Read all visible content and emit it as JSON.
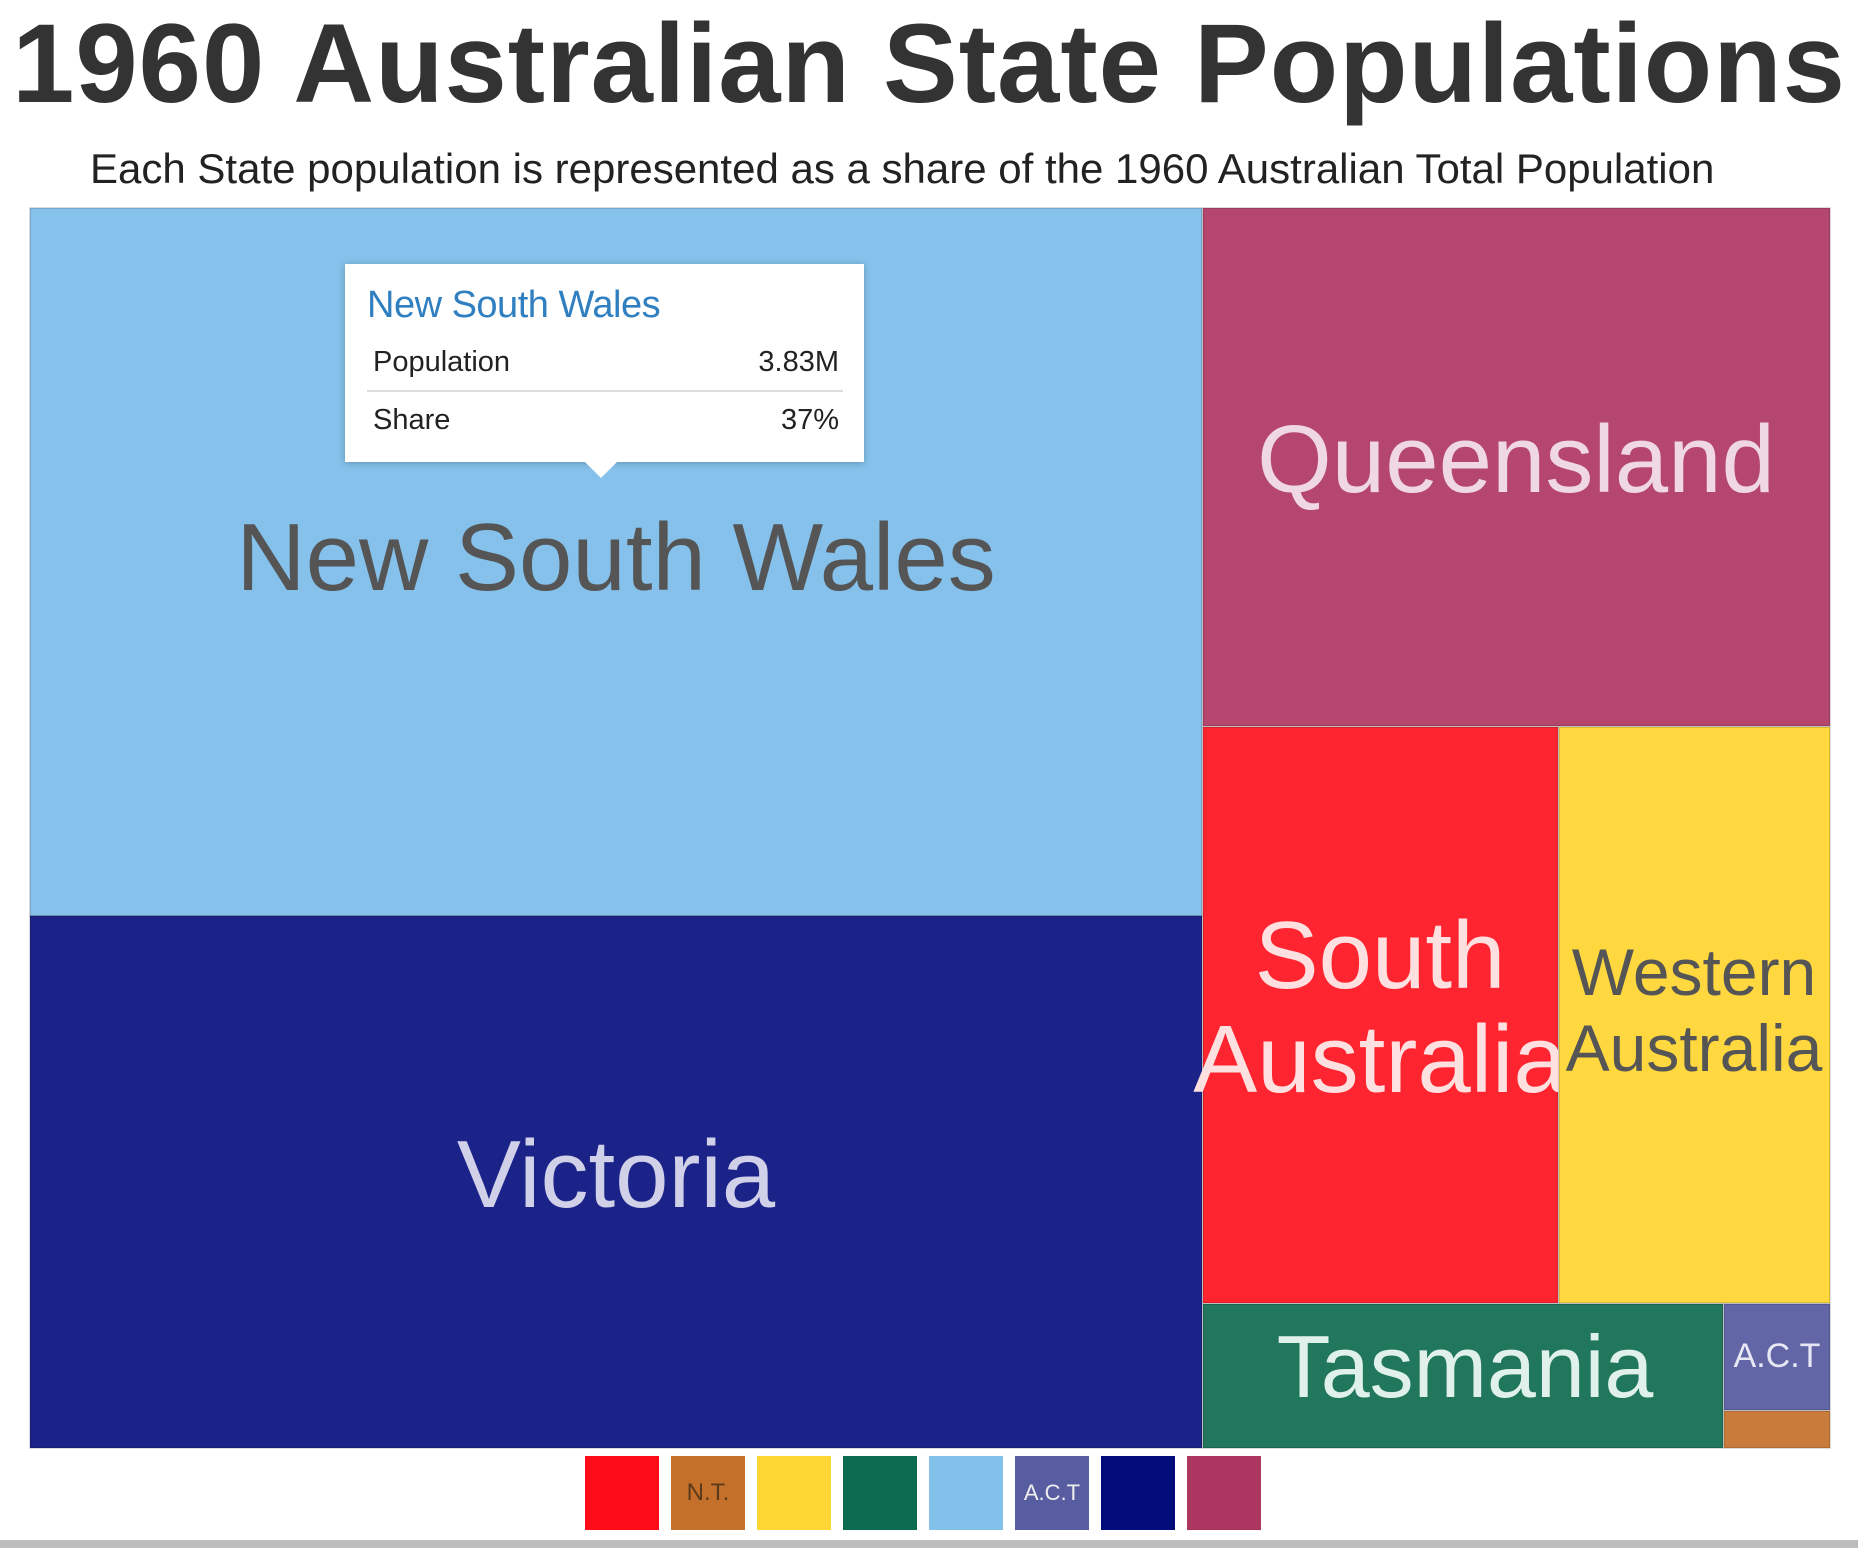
{
  "header": {
    "title": "1960 Australian State Populations",
    "subtitle": "Each State population is represented as a share of the 1960 Australian Total Population"
  },
  "tooltip": {
    "title": "New South Wales",
    "population_label": "Population",
    "population_value": "3.83M",
    "share_label": "Share",
    "share_value": "37%"
  },
  "chart_data": {
    "type": "treemap",
    "title": "1960 Australian State Populations",
    "subtitle": "Each State population is represented as a share of the 1960 Australian Total Population",
    "items": [
      {
        "name": "New South Wales",
        "label": "New South Wales",
        "share": 37,
        "population": "3.83M",
        "color": "#85c1eb",
        "text_color": "#555555"
      },
      {
        "name": "Victoria",
        "label": "Victoria",
        "share": 28,
        "color": "#1b2389",
        "text_color": "#d0d0e8"
      },
      {
        "name": "Queensland",
        "label": "Queensland",
        "share": 14.5,
        "color": "#b5476f",
        "text_color": "#f0d8e2"
      },
      {
        "name": "South Australia",
        "label": "South Australia",
        "share": 9,
        "color": "#fe2530",
        "text_color": "#ffe0e0"
      },
      {
        "name": "Western Australia",
        "label": "Western Australia",
        "share": 7,
        "color": "#ffd83f",
        "text_color": "#555555"
      },
      {
        "name": "Tasmania",
        "label": "Tasmania",
        "share": 3.4,
        "color": "#21775c",
        "text_color": "#e0f0ea"
      },
      {
        "name": "A.C.T",
        "label": "A.C.T",
        "share": 0.6,
        "color": "#6266a6",
        "text_color": "#e8e8f4"
      },
      {
        "name": "N.T.",
        "label": "",
        "share": 0.2,
        "color": "#c87b3b",
        "text_color": "#ffffff"
      }
    ],
    "legend": [
      {
        "color": "#ff0c1b",
        "label": ""
      },
      {
        "color": "#c4702b",
        "label": "N.T."
      },
      {
        "color": "#fed735",
        "label": ""
      },
      {
        "color": "#0c6a50",
        "label": ""
      },
      {
        "color": "#84c1ea",
        "label": ""
      },
      {
        "color": "#585ca0",
        "label": "A.C.T"
      },
      {
        "color": "#020c7b",
        "label": ""
      },
      {
        "color": "#ad3661",
        "label": ""
      }
    ]
  }
}
